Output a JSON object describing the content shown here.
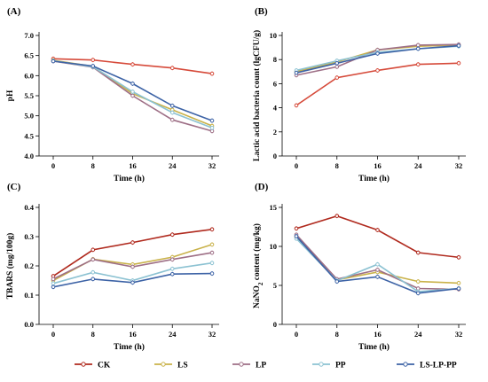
{
  "legend": [
    {
      "name": "CK",
      "color": "#b02a1e"
    },
    {
      "name": "LS",
      "color": "#c9b24a"
    },
    {
      "name": "LP",
      "color": "#9e6f86"
    },
    {
      "name": "PP",
      "color": "#8cc2d2"
    },
    {
      "name": "LS-LP-PP",
      "color": "#3d63a6"
    }
  ],
  "chart_data": [
    {
      "id": "A",
      "panel_label": "(A)",
      "type": "line",
      "xlabel": "Time (h)",
      "ylabel": "pH",
      "x": [
        0,
        8,
        16,
        24,
        32
      ],
      "ylim": [
        4.0,
        7.0
      ],
      "yticks": [
        "4.0",
        "4.5",
        "5.0",
        "5.5",
        "6.0",
        "6.5",
        "7.0"
      ],
      "series": [
        {
          "name": "CK",
          "color": "#d64a3a",
          "values": [
            6.42,
            6.39,
            6.28,
            6.19,
            6.05
          ]
        },
        {
          "name": "LS",
          "color": "#c9b24a",
          "values": [
            6.38,
            6.23,
            5.55,
            5.15,
            4.75
          ]
        },
        {
          "name": "LP",
          "color": "#9e6f86",
          "values": [
            6.36,
            6.21,
            5.5,
            4.9,
            4.62
          ]
        },
        {
          "name": "PP",
          "color": "#8cc2d2",
          "values": [
            6.37,
            6.22,
            5.6,
            5.08,
            4.7
          ]
        },
        {
          "name": "LS-LP-PP",
          "color": "#3d63a6",
          "values": [
            6.36,
            6.24,
            5.8,
            5.25,
            4.88
          ]
        }
      ]
    },
    {
      "id": "B",
      "panel_label": "(B)",
      "type": "line",
      "xlabel": "Time (h)",
      "ylabel": "Lactic acid bacteria count (lgCFU/g)",
      "x": [
        0,
        8,
        16,
        24,
        32
      ],
      "ylim": [
        0,
        10
      ],
      "yticks": [
        "0",
        "2",
        "4",
        "6",
        "8",
        "10"
      ],
      "series": [
        {
          "name": "CK",
          "color": "#d64a3a",
          "values": [
            4.2,
            6.5,
            7.1,
            7.6,
            7.7
          ]
        },
        {
          "name": "LS",
          "color": "#c9b24a",
          "values": [
            7.0,
            7.8,
            8.8,
            9.1,
            9.2
          ]
        },
        {
          "name": "LP",
          "color": "#9e6f86",
          "values": [
            6.7,
            7.4,
            8.8,
            9.2,
            9.25
          ]
        },
        {
          "name": "PP",
          "color": "#8cc2d2",
          "values": [
            7.1,
            7.9,
            8.6,
            8.9,
            9.1
          ]
        },
        {
          "name": "LS-LP-PP",
          "color": "#3d63a6",
          "values": [
            6.9,
            7.7,
            8.5,
            8.9,
            9.15
          ]
        }
      ]
    },
    {
      "id": "C",
      "panel_label": "(C)",
      "type": "line",
      "xlabel": "Time (h)",
      "ylabel": "TBARS (mg/100g)",
      "x": [
        0,
        8,
        16,
        24,
        32
      ],
      "ylim": [
        0.0,
        0.4
      ],
      "yticks": [
        "0.0",
        "0.1",
        "0.2",
        "0.3",
        "0.4"
      ],
      "series": [
        {
          "name": "CK",
          "color": "#b02a1e",
          "values": [
            0.165,
            0.255,
            0.28,
            0.307,
            0.325
          ]
        },
        {
          "name": "LS",
          "color": "#c9b24a",
          "values": [
            0.15,
            0.223,
            0.205,
            0.23,
            0.273
          ]
        },
        {
          "name": "LP",
          "color": "#9e6f86",
          "values": [
            0.155,
            0.222,
            0.197,
            0.222,
            0.245
          ]
        },
        {
          "name": "PP",
          "color": "#8cc2d2",
          "values": [
            0.14,
            0.178,
            0.15,
            0.19,
            0.21
          ]
        },
        {
          "name": "LS-LP-PP",
          "color": "#3d63a6",
          "values": [
            0.128,
            0.155,
            0.143,
            0.172,
            0.174
          ]
        }
      ]
    },
    {
      "id": "D",
      "panel_label": "(D)",
      "type": "line",
      "xlabel": "Time (h)",
      "ylabel_parts": [
        "NaNO",
        "2",
        " content (mg/kg)"
      ],
      "x": [
        0,
        8,
        16,
        24,
        32
      ],
      "ylim": [
        0,
        15
      ],
      "yticks": [
        "0",
        "5",
        "10",
        "15"
      ],
      "series": [
        {
          "name": "CK",
          "color": "#b02a1e",
          "values": [
            12.3,
            13.9,
            12.1,
            9.2,
            8.6
          ]
        },
        {
          "name": "LS",
          "color": "#c9b24a",
          "values": [
            11.2,
            5.7,
            6.7,
            5.5,
            5.3
          ]
        },
        {
          "name": "LP",
          "color": "#9e6f86",
          "values": [
            11.5,
            5.8,
            7.0,
            4.6,
            4.5
          ]
        },
        {
          "name": "PP",
          "color": "#8cc2d2",
          "values": [
            11.0,
            5.6,
            7.7,
            4.2,
            4.6
          ]
        },
        {
          "name": "LS-LP-PP",
          "color": "#3d63a6",
          "values": [
            11.3,
            5.5,
            6.1,
            4.0,
            4.6
          ]
        }
      ]
    }
  ]
}
